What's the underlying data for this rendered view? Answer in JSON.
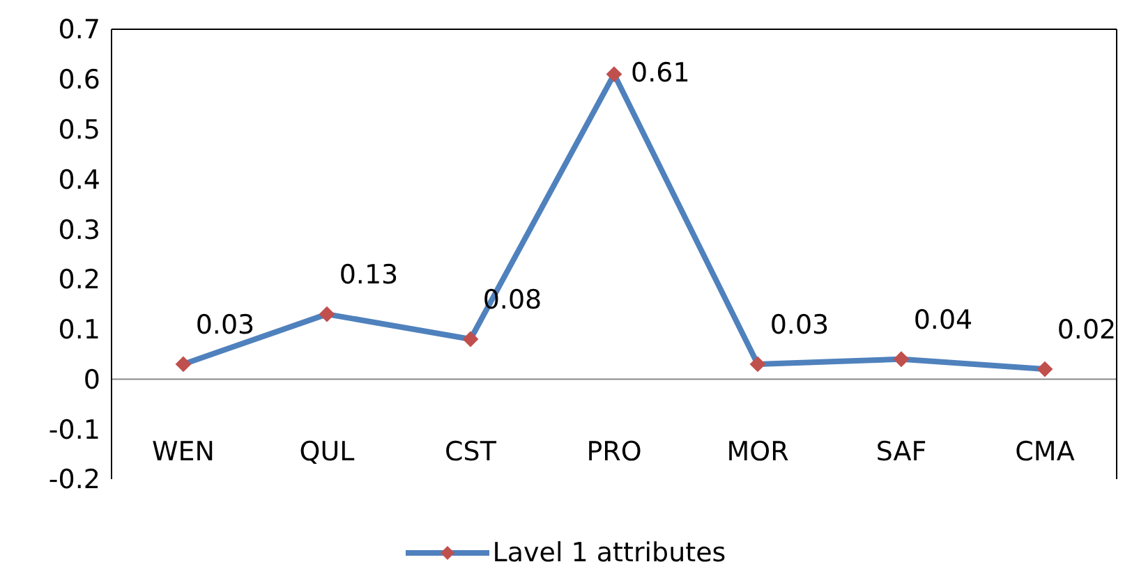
{
  "chart_data": {
    "type": "line",
    "categories": [
      "WEN",
      "QUL",
      "CST",
      "PRO",
      "MOR",
      "SAF",
      "CMA"
    ],
    "series": [
      {
        "name": "Lavel 1 attributes",
        "color": "#4f81bd",
        "colors": [
          "#c0504d",
          "#c0504d",
          "#c0504d",
          "#c0504d",
          "#c0504d",
          "#c0504d",
          "#c0504d"
        ],
        "values": [
          0.03,
          0.13,
          0.08,
          0.61,
          0.03,
          0.04,
          0.02
        ]
      }
    ],
    "ylim": [
      -0.2,
      0.7
    ],
    "yticks": [
      -0.2,
      -0.1,
      0,
      0.1,
      0.2,
      0.3,
      0.4,
      0.5,
      0.6,
      0.7
    ],
    "marker": "diamond",
    "data_labels": true,
    "legend": "bottom",
    "grid": false
  }
}
